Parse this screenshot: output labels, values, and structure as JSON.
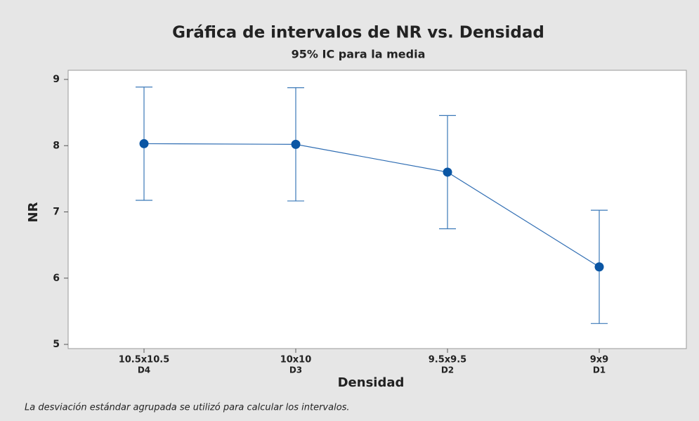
{
  "chart_data": {
    "type": "interval",
    "title": "Gráfica de intervalos de NR vs. Densidad",
    "subtitle": "95% IC para la media",
    "x_label": "Densidad",
    "y_label": "NR",
    "footnote": "La desviación estándar agrupada se utilizó para calcular los intervalos.",
    "categories": [
      "10.5x10.5",
      "10x10",
      "9.5x9.5",
      "9x9"
    ],
    "category_groups": [
      "D4",
      "D3",
      "D2",
      "D1"
    ],
    "values": [
      8.03,
      8.02,
      7.6,
      6.17
    ],
    "errors": [
      0.855,
      0.855,
      0.855,
      0.855
    ],
    "color": "#0b56a4",
    "line_color": "#2f6db3",
    "errorbar_color": "#3b79b8",
    "ylim": [
      5,
      9
    ],
    "yticks": [
      5,
      6,
      7,
      8,
      9
    ],
    "grid": false
  }
}
